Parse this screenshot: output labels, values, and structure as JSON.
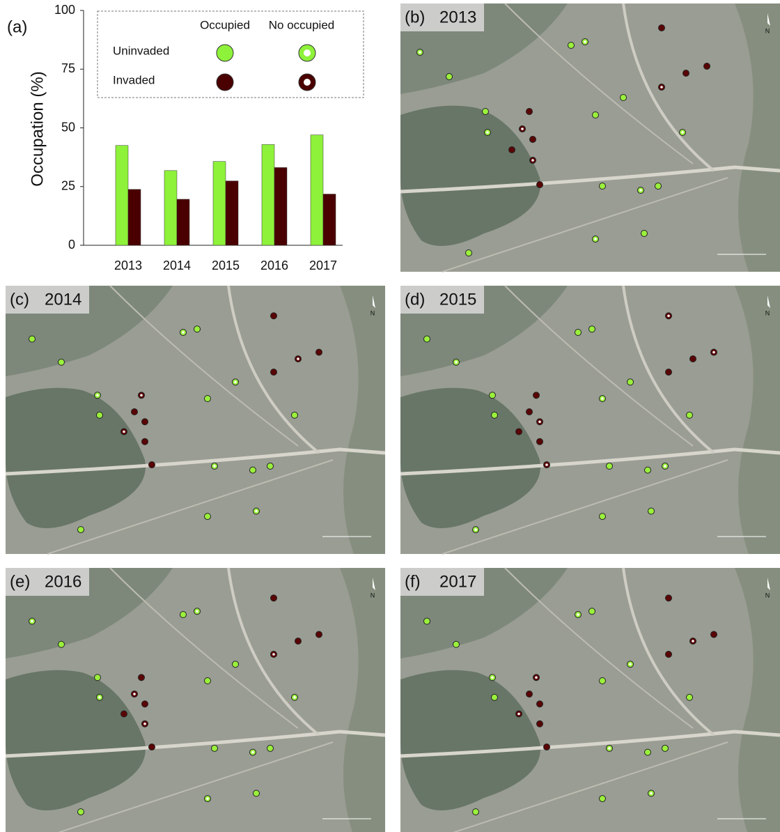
{
  "chart_data": {
    "type": "bar",
    "panel_label": "(a)",
    "y_label": "Occupation (%)",
    "categories": [
      "2013",
      "2014",
      "2015",
      "2016",
      "2017"
    ],
    "series": [
      {
        "name": "Uninvaded",
        "color": "#8ef13a",
        "values": [
          42.5,
          31.8,
          35.7,
          42.9,
          47
        ]
      },
      {
        "name": "Invaded",
        "color": "#4a0000",
        "values": [
          23.8,
          19.6,
          27.4,
          33.1,
          21.8
        ]
      }
    ],
    "legend_columns": [
      "Occupied",
      "No occupied"
    ],
    "ylim": [
      0,
      100
    ],
    "yticks": [
      0,
      25,
      50,
      75,
      100
    ],
    "grid": false
  },
  "maps": [
    {
      "label": "(b)",
      "year": "2013",
      "north": "N"
    },
    {
      "label": "(c)",
      "year": "2014",
      "north": "N"
    },
    {
      "label": "(d)",
      "year": "2015",
      "north": "N"
    },
    {
      "label": "(e)",
      "year": "2016",
      "north": "N"
    },
    {
      "label": "(f)",
      "year": "2017",
      "north": "N"
    }
  ]
}
